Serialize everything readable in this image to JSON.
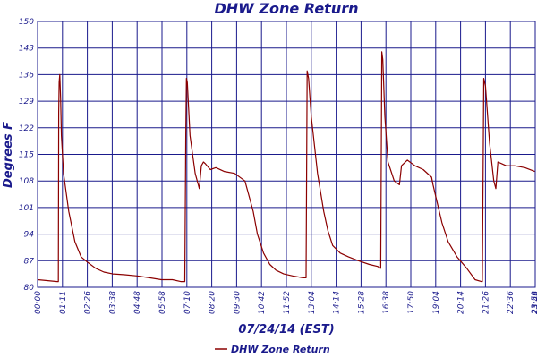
{
  "chart_data": {
    "type": "line",
    "title": "DHW Zone Return",
    "xlabel": "07/24/14 (EST)",
    "ylabel": "Degrees F",
    "ylim": [
      80,
      150
    ],
    "y_ticks": [
      "80",
      "87",
      "94",
      "101",
      "108",
      "115",
      "122",
      "129",
      "136",
      "143",
      "150"
    ],
    "x_ticks": [
      "00:00",
      "01:11",
      "02:26",
      "03:38",
      "04:48",
      "05:58",
      "07:10",
      "08:20",
      "09:30",
      "10:42",
      "11:52",
      "13:04",
      "14:14",
      "15:28",
      "16:38",
      "17:50",
      "19:04",
      "20:14",
      "21:26",
      "22:36",
      "23:46",
      "23:59"
    ],
    "grid": true,
    "legend_position": "bottom-center",
    "colors": {
      "line": "#8b0000",
      "grid": "#1a1a8c",
      "text": "#1a1a8c"
    },
    "series": [
      {
        "name": "DHW Zone Return",
        "x_hours": [
          0,
          0.95,
          1.0,
          1.02,
          1.04,
          1.07,
          1.11,
          1.15,
          1.25,
          1.5,
          1.8,
          2.1,
          2.43,
          2.8,
          3.2,
          3.63,
          4.2,
          4.8,
          5.4,
          5.97,
          6.5,
          6.9,
          7.1,
          7.15,
          7.18,
          7.22,
          7.35,
          7.6,
          7.8,
          7.9,
          8.0,
          8.1,
          8.33,
          8.6,
          9.0,
          9.5,
          10.0,
          10.4,
          10.6,
          10.9,
          11.2,
          11.5,
          11.87,
          12.3,
          12.8,
          12.95,
          13.0,
          13.07,
          13.2,
          13.5,
          13.8,
          14.0,
          14.23,
          14.6,
          15.0,
          15.47,
          16.0,
          16.4,
          16.55,
          16.6,
          16.65,
          16.75,
          16.9,
          17.2,
          17.45,
          17.55,
          17.83,
          18.2,
          18.6,
          19.0,
          19.07,
          19.2,
          19.5,
          19.8,
          20.23,
          20.7,
          21.1,
          21.4,
          21.45,
          21.52,
          21.6,
          21.8,
          22.0,
          22.1,
          22.2,
          22.4,
          22.6,
          23.0,
          23.5,
          23.98
        ],
        "values": [
          82,
          81.5,
          81.5,
          126,
          134,
          136,
          130,
          120,
          110,
          100,
          92,
          88,
          86.5,
          85,
          84,
          83.5,
          83.3,
          83,
          82.5,
          82,
          82,
          81.5,
          81.5,
          120,
          135,
          134,
          120,
          110,
          106,
          112,
          113,
          112.5,
          111,
          111.5,
          110.5,
          110,
          108,
          100,
          94,
          89,
          86,
          84.5,
          83.5,
          83,
          82.5,
          82.5,
          137,
          135,
          125,
          110,
          100,
          95,
          91,
          89,
          88,
          87,
          86,
          85.5,
          85,
          142,
          140,
          125,
          113,
          108,
          107,
          112,
          113.5,
          112,
          111,
          109,
          107,
          104,
          97,
          92,
          88,
          85,
          82,
          81.5,
          81.5,
          135,
          133,
          118,
          108,
          106,
          113,
          112.5,
          112,
          112,
          111.5,
          110.5
        ]
      }
    ]
  }
}
